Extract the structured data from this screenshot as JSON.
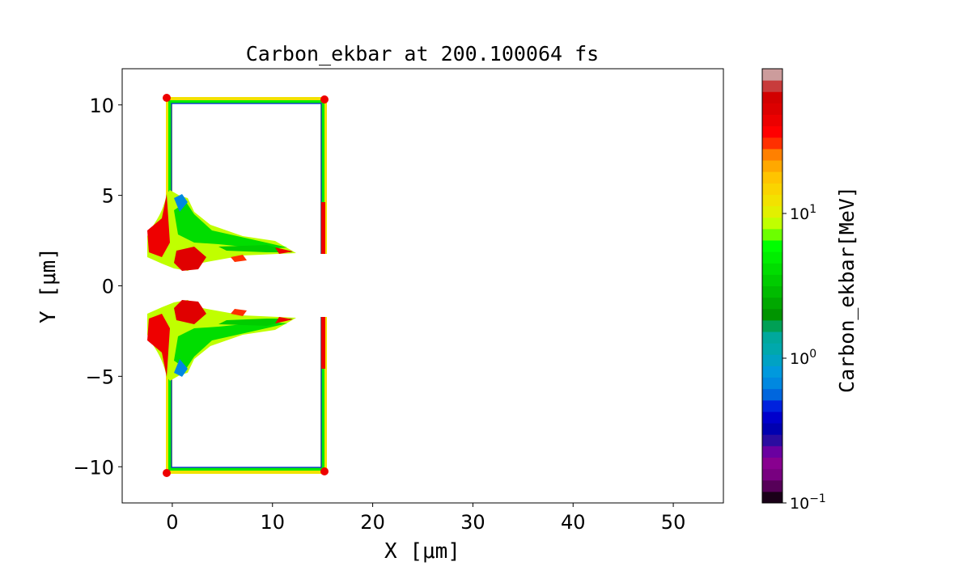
{
  "chart_data": {
    "type": "heatmap",
    "title": "Carbon_ekbar at 200.100064 fs",
    "xlabel": "X  [$\\mu m$]",
    "xlabel_display": "X  [μm]",
    "ylabel_display": "Y  [μm]",
    "xlim": [
      -5,
      55
    ],
    "ylim": [
      -12,
      12
    ],
    "xticks": [
      0,
      10,
      20,
      30,
      40,
      50
    ],
    "xtick_labels": [
      "0",
      "10",
      "20",
      "30",
      "40",
      "50"
    ],
    "yticks": [
      -10,
      -5,
      0,
      5,
      10
    ],
    "ytick_labels": [
      "−10",
      "−5",
      "0",
      "5",
      "10"
    ],
    "grid": false,
    "colorbar": {
      "label": "Carbon_ekbar[MeV]",
      "scale": "log",
      "range": [
        0.1,
        100
      ],
      "ticks": [
        0.1,
        1,
        10
      ],
      "tick_labels": [
        {
          "base": "10",
          "exp": "−1"
        },
        {
          "base": "10",
          "exp": "0"
        },
        {
          "base": "10",
          "exp": "1"
        }
      ],
      "colormap": "nipy_spectral",
      "levels_colors": [
        "#1a0018",
        "#560058",
        "#780080",
        "#88008f",
        "#6a00a0",
        "#2a0ca0",
        "#0000b0",
        "#0000cc",
        "#0022dd",
        "#0066dd",
        "#0088e0",
        "#0099dd",
        "#00a2c4",
        "#00a8ac",
        "#00a89c",
        "#00a055",
        "#009400",
        "#00a800",
        "#00bb00",
        "#00cc00",
        "#00dd00",
        "#00ee00",
        "#00ff00",
        "#6cff00",
        "#c0ff00",
        "#e2f000",
        "#f2e200",
        "#fad400",
        "#ffc400",
        "#ffa800",
        "#ff8000",
        "#ff3000",
        "#ff0000",
        "#ec0000",
        "#dc0000",
        "#d20000",
        "#c83c3c",
        "#cc9c9c"
      ]
    },
    "description_of_field": "target frame x 0–15 μm, y ±10 μm with ejecta near y ≈ ±2 μm"
  }
}
